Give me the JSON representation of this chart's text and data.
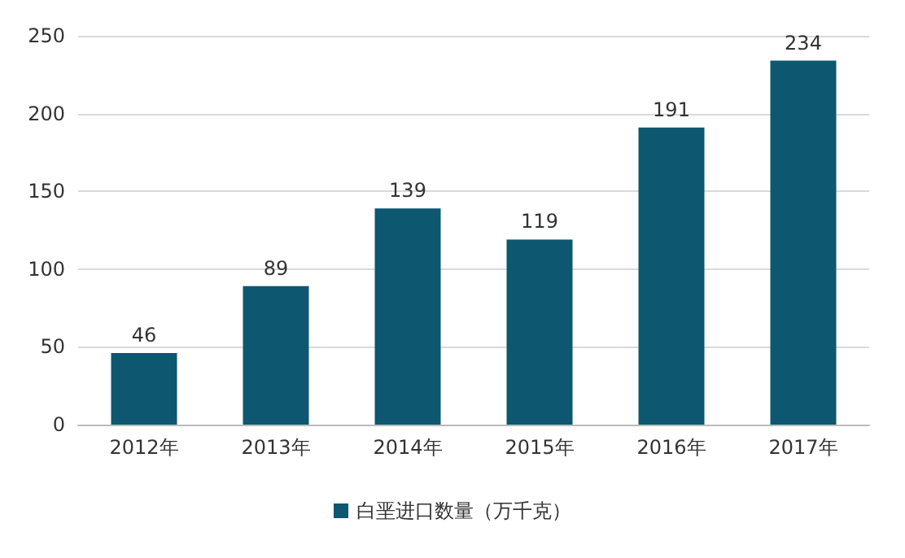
{
  "chart_data": {
    "type": "bar",
    "categories": [
      "2012年",
      "2013年",
      "2014年",
      "2015年",
      "2016年",
      "2017年"
    ],
    "series": [
      {
        "name": "白垩进口数量（万千克）",
        "color": "#0d5770",
        "values": [
          46,
          89,
          139,
          119,
          191,
          234
        ]
      }
    ],
    "ylim": [
      0,
      250
    ],
    "yticks": [
      0,
      50,
      100,
      150,
      200,
      250
    ],
    "grid": "y",
    "legend": "bottom",
    "data_labels": true
  }
}
